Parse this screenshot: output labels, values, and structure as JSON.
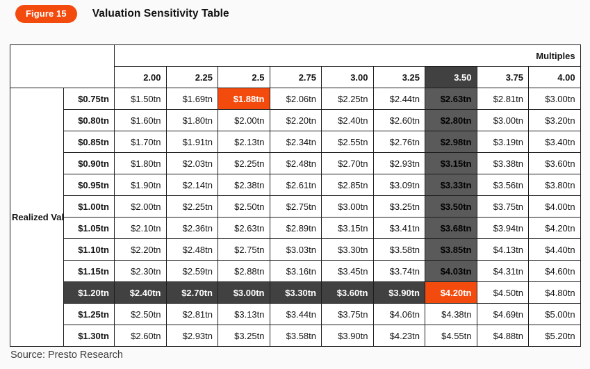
{
  "figure": {
    "badge_label": "Figure 15",
    "title": "Valuation Sensitivity Table"
  },
  "source_text": "Source: Presto Research",
  "colors": {
    "accent_orange": "#f34a0e",
    "header_gray": "#d9d9d9",
    "dark_charcoal": "#414141",
    "dark_column_gray": "#5a5a5a"
  },
  "chart_data": {
    "type": "table",
    "title": "Valuation Sensitivity Table",
    "column_group_label": "Multiples",
    "row_group_label": "Realized Value",
    "multiples": [
      "2.00",
      "2.25",
      "2.5",
      "2.75",
      "3.00",
      "3.25",
      "3.50",
      "3.75",
      "4.00"
    ],
    "rows": [
      {
        "label": "$0.75tn",
        "values": [
          "$1.50tn",
          "$1.69tn",
          "$1.88tn",
          "$2.06tn",
          "$2.25tn",
          "$2.44tn",
          "$2.63tn",
          "$2.81tn",
          "$3.00tn"
        ]
      },
      {
        "label": "$0.80tn",
        "values": [
          "$1.60tn",
          "$1.80tn",
          "$2.00tn",
          "$2.20tn",
          "$2.40tn",
          "$2.60tn",
          "$2.80tn",
          "$3.00tn",
          "$3.20tn"
        ]
      },
      {
        "label": "$0.85tn",
        "values": [
          "$1.70tn",
          "$1.91tn",
          "$2.13tn",
          "$2.34tn",
          "$2.55tn",
          "$2.76tn",
          "$2.98tn",
          "$3.19tn",
          "$3.40tn"
        ]
      },
      {
        "label": "$0.90tn",
        "values": [
          "$1.80tn",
          "$2.03tn",
          "$2.25tn",
          "$2.48tn",
          "$2.70tn",
          "$2.93tn",
          "$3.15tn",
          "$3.38tn",
          "$3.60tn"
        ]
      },
      {
        "label": "$0.95tn",
        "values": [
          "$1.90tn",
          "$2.14tn",
          "$2.38tn",
          "$2.61tn",
          "$2.85tn",
          "$3.09tn",
          "$3.33tn",
          "$3.56tn",
          "$3.80tn"
        ]
      },
      {
        "label": "$1.00tn",
        "values": [
          "$2.00tn",
          "$2.25tn",
          "$2.50tn",
          "$2.75tn",
          "$3.00tn",
          "$3.25tn",
          "$3.50tn",
          "$3.75tn",
          "$4.00tn"
        ]
      },
      {
        "label": "$1.05tn",
        "values": [
          "$2.10tn",
          "$2.36tn",
          "$2.63tn",
          "$2.89tn",
          "$3.15tn",
          "$3.41tn",
          "$3.68tn",
          "$3.94tn",
          "$4.20tn"
        ]
      },
      {
        "label": "$1.10tn",
        "values": [
          "$2.20tn",
          "$2.48tn",
          "$2.75tn",
          "$3.03tn",
          "$3.30tn",
          "$3.58tn",
          "$3.85tn",
          "$4.13tn",
          "$4.40tn"
        ]
      },
      {
        "label": "$1.15tn",
        "values": [
          "$2.30tn",
          "$2.59tn",
          "$2.88tn",
          "$3.16tn",
          "$3.45tn",
          "$3.74tn",
          "$4.03tn",
          "$4.31tn",
          "$4.60tn"
        ]
      },
      {
        "label": "$1.20tn",
        "values": [
          "$2.40tn",
          "$2.70tn",
          "$3.00tn",
          "$3.30tn",
          "$3.60tn",
          "$3.90tn",
          "$4.20tn",
          "$4.50tn",
          "$4.80tn"
        ]
      },
      {
        "label": "$1.25tn",
        "values": [
          "$2.50tn",
          "$2.81tn",
          "$3.13tn",
          "$3.44tn",
          "$3.75tn",
          "$4.06tn",
          "$4.38tn",
          "$4.69tn",
          "$5.00tn"
        ]
      },
      {
        "label": "$1.30tn",
        "values": [
          "$2.60tn",
          "$2.93tn",
          "$3.25tn",
          "$3.58tn",
          "$3.90tn",
          "$4.23tn",
          "$4.55tn",
          "$4.88tn",
          "$5.20tn"
        ]
      }
    ],
    "highlights": {
      "orange_cells": [
        [
          0,
          2
        ],
        [
          9,
          6
        ]
      ],
      "dark_header_column_index": 6,
      "dark_column_index": 6,
      "dark_column_row_range": [
        0,
        8
      ],
      "dark_row_index": 9,
      "dark_row_col_range": [
        0,
        5
      ]
    }
  }
}
